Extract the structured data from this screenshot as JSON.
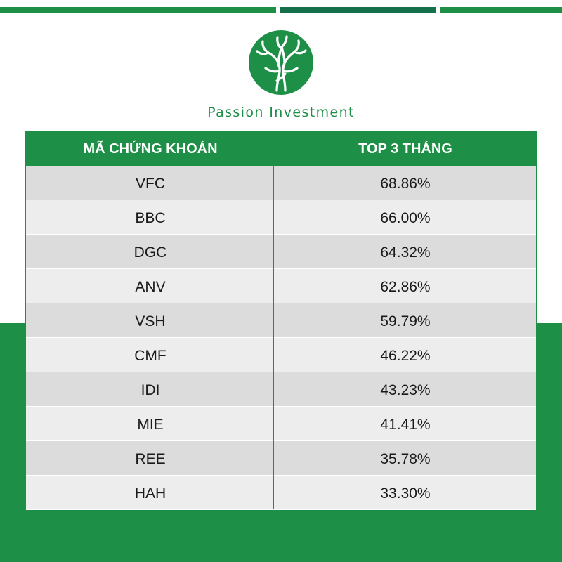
{
  "brand": {
    "name": "Passion Investment",
    "primary_color": "#1e8f47",
    "logo_icon": "tree-icon"
  },
  "table": {
    "headers": [
      "MÃ CHỨNG KHOÁN",
      "TOP 3 THÁNG"
    ],
    "rows": [
      {
        "code": "VFC",
        "value": "68.86%"
      },
      {
        "code": "BBC",
        "value": "66.00%"
      },
      {
        "code": "DGC",
        "value": "64.32%"
      },
      {
        "code": "ANV",
        "value": "62.86%"
      },
      {
        "code": "VSH",
        "value": "59.79%"
      },
      {
        "code": "CMF",
        "value": "46.22%"
      },
      {
        "code": "IDI",
        "value": "43.23%"
      },
      {
        "code": "MIE",
        "value": "41.41%"
      },
      {
        "code": "REE",
        "value": "35.78%"
      },
      {
        "code": "HAH",
        "value": "33.30%"
      }
    ]
  }
}
